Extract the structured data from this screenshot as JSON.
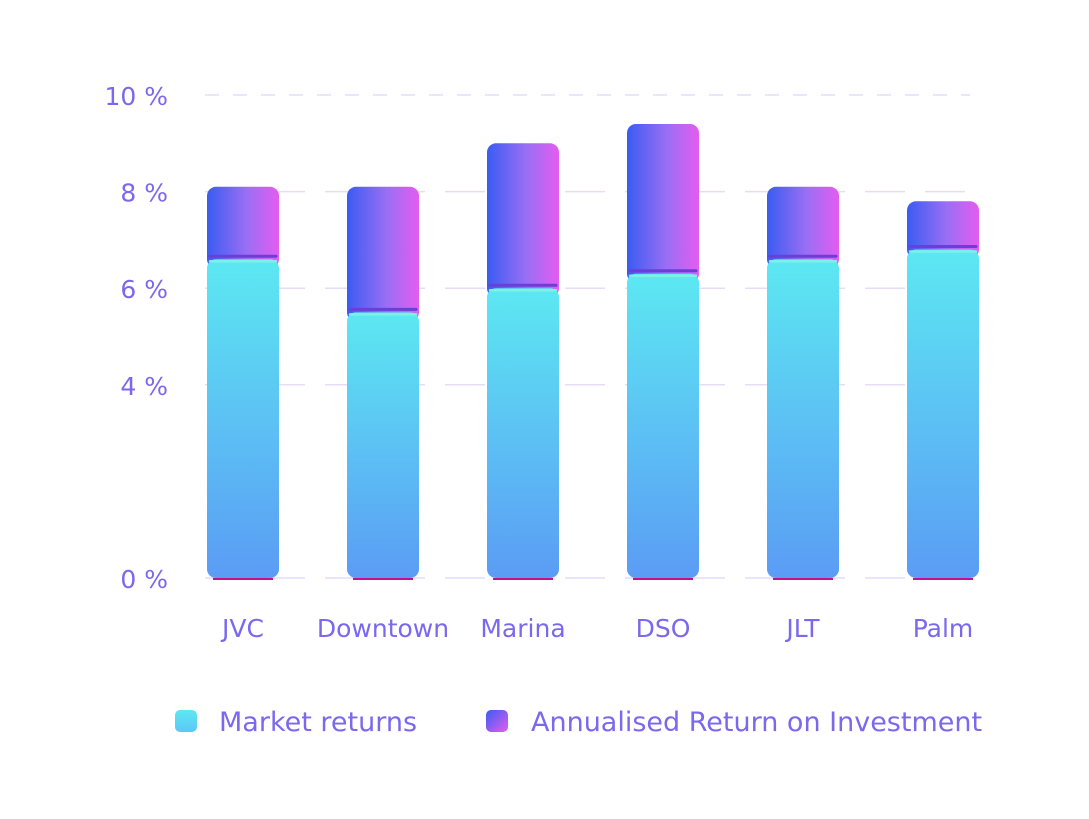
{
  "chart_data": {
    "type": "bar",
    "stacked": true,
    "categories": [
      "JVC",
      "Downtown",
      "Marina",
      "DSO",
      "JLT",
      "Palm"
    ],
    "series": [
      {
        "name": "Market returns",
        "values": [
          6.6,
          5.5,
          6.0,
          6.3,
          6.6,
          6.8
        ],
        "color_top": "#5ce8f2",
        "color_bottom": "#5b9cf5"
      },
      {
        "name": "Annualised Return on Investment",
        "values": [
          1.5,
          2.6,
          3.0,
          3.1,
          1.5,
          1.0
        ],
        "color_left": "#3a5cf2",
        "color_right": "#e45cf0"
      }
    ],
    "ylim": [
      0,
      10
    ],
    "yticks": [
      "0 %",
      "4 %",
      "6 %",
      "8 %",
      "10 %"
    ],
    "ytick_values": [
      0,
      4,
      6,
      8,
      10
    ],
    "grid": true,
    "legend_position": "bottom"
  },
  "colors": {
    "label": "#7b68ee",
    "grid": "#e6dcf5",
    "marker_line": "#c2108f",
    "divider": "#6a3fd6"
  }
}
